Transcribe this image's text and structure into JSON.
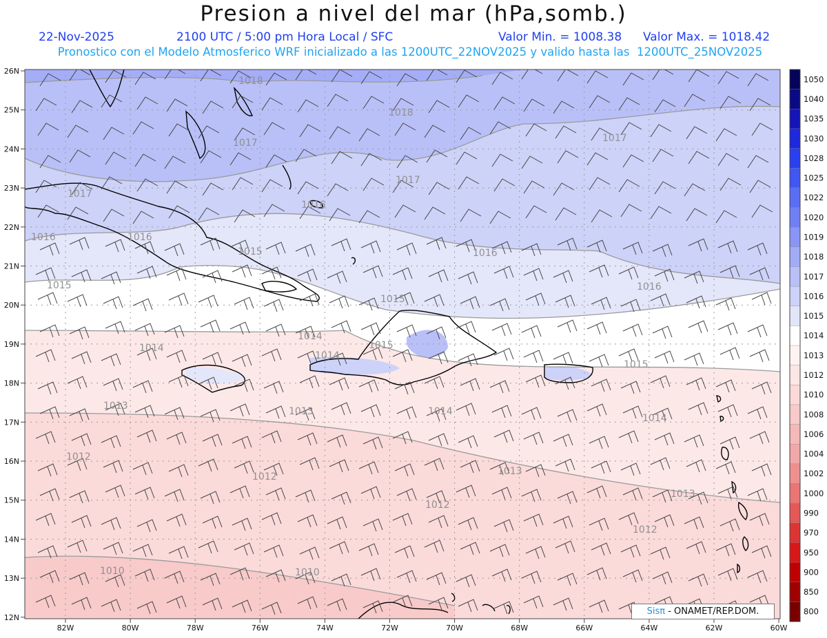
{
  "header": {
    "title": "Presion a nivel del mar (hPa,somb.)",
    "date": "22-Nov-2025",
    "time_label": "2100 UTC / 5:00 pm Hora Local / SFC",
    "min_label": "Valor Min. = 1008.38",
    "max_label": "Valor Max. = 1018.42",
    "forecast_note": "Pronostico con el Modelo Atmosferico WRF inicializado a las 1200UTC_22NOV2025 y valido hasta las  1200UTC_25NOV2025"
  },
  "map": {
    "lat_labels": [
      "26N",
      "25N",
      "24N",
      "23N",
      "22N",
      "21N",
      "20N",
      "19N",
      "18N",
      "17N",
      "16N",
      "15N",
      "14N",
      "13N",
      "12N"
    ],
    "lon_labels": [
      "82W",
      "80W",
      "78W",
      "76W",
      "74W",
      "72W",
      "70W",
      "68W",
      "66W",
      "64W",
      "62W",
      "60W"
    ],
    "isobars": [
      "1018",
      "1018",
      "1017",
      "1017",
      "1017",
      "1017",
      "1016",
      "1016",
      "1016",
      "1016",
      "1016",
      "1015",
      "1015",
      "1015",
      "1015",
      "1015",
      "1014",
      "1014",
      "1014",
      "1014",
      "1014",
      "1013",
      "1013",
      "1013",
      "1013",
      "1012",
      "1012",
      "1012",
      "1012",
      "1010",
      "1010"
    ]
  },
  "colorbar": {
    "levels": [
      "1050",
      "1040",
      "1035",
      "1030",
      "1028",
      "1025",
      "1022",
      "1020",
      "1019",
      "1018",
      "1017",
      "1016",
      "1015",
      "1014",
      "1013",
      "1012",
      "1010",
      "1008",
      "1006",
      "1004",
      "1002",
      "1000",
      "990",
      "970",
      "950",
      "900",
      "850",
      "800"
    ],
    "colors": [
      "#04045a",
      "#0a0a86",
      "#1414b8",
      "#1e28dc",
      "#2a40f0",
      "#4057f2",
      "#5a6ef4",
      "#7080f4",
      "#8a96f5",
      "#a2acf6",
      "#b8c0f7",
      "#ccd2f8",
      "#e2e5fa",
      "#ffffff",
      "#fff2f2",
      "#fde6e6",
      "#fbd9d9",
      "#f8caca",
      "#f5b9b9",
      "#f2a8a8",
      "#ee9090",
      "#ea7575",
      "#e55858",
      "#dd3434",
      "#d81818",
      "#c00000",
      "#a00000",
      "#7a0000"
    ]
  },
  "credit": {
    "brand": "Sisπ",
    "text": "- ONAMET/REP.DOM."
  }
}
